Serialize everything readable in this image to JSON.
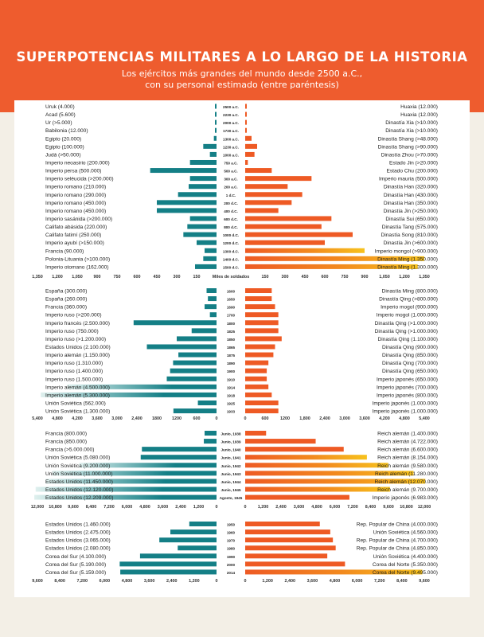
{
  "header": {
    "title": "SUPERPOTENCIAS MILITARES A LO LARGO DE LA HISTORIA",
    "subtitle_line1": "Los ejércitos más grandes del mundo desde 2500 a.C.,",
    "subtitle_line2": "con su personal estimado (entre paréntesis)"
  },
  "colors": {
    "background": "#f3efe6",
    "header": "#ee5c2e",
    "left_bar": "#147f86",
    "right_bar": "#ee5a24",
    "right_highlight": "#f5a81c"
  },
  "chart_data": [
    {
      "type": "bar",
      "layout": "diverging",
      "x_unit_label": "Miles de soldados",
      "ticks_left": [
        "1,350",
        "1,200",
        "1,050",
        "900",
        "750",
        "600",
        "450",
        "300",
        "150"
      ],
      "ticks_right": [
        "150",
        "300",
        "450",
        "600",
        "750",
        "900",
        "1,050",
        "1,200",
        "1,350"
      ],
      "xlim": [
        0,
        1350
      ],
      "rows": [
        {
          "year": "2500 a.C.",
          "left_label": "Uruk (4.000)",
          "left_value": 4,
          "right_label": "Huaxia (12.000)",
          "right_value": 12
        },
        {
          "year": "2230 a.C.",
          "left_label": "Acad (5.600)",
          "left_value": 5.6,
          "right_label": "Huaxia (12.000)",
          "right_value": 12
        },
        {
          "year": "2000 a.C.",
          "left_label": "Ur (>5.000)",
          "left_value": 5,
          "right_label": "Dinastía Xia (>10.000)",
          "right_value": 10
        },
        {
          "year": "1730 a.C.",
          "left_label": "Babilonia (12.000)",
          "left_value": 12,
          "right_label": "Dinastía Xia (>10.000)",
          "right_value": 10
        },
        {
          "year": "1300 a.C.",
          "left_label": "Egipto (20.000)",
          "left_value": 20,
          "right_label": "Dinastía Shang (>48.000)",
          "right_value": 48
        },
        {
          "year": "1230 a.C.",
          "left_label": "Egipto (100.000)",
          "left_value": 100,
          "right_label": "Dinastía Shang (>90.000)",
          "right_value": 90
        },
        {
          "year": "1000 a.C.",
          "left_label": "Judá (>50.000)",
          "left_value": 50,
          "right_label": "Dinastía Zhou (>70.000)",
          "right_value": 70
        },
        {
          "year": "750 a.C.",
          "left_label": "Imperio neoasirio (200.000)",
          "left_value": 200,
          "right_label": "Estado Jin (>20.000)",
          "right_value": 20
        },
        {
          "year": "500 a.C.",
          "left_label": "Imperio persa (500.000)",
          "left_value": 500,
          "right_label": "Estado Chu (200.000)",
          "right_value": 200
        },
        {
          "year": "300 a.C.",
          "left_label": "Imperio seléucida (>200.000)",
          "left_value": 200,
          "right_label": "Imperio mauria (500.000)",
          "right_value": 500
        },
        {
          "year": "200 a.C.",
          "left_label": "Imperio romano (210.000)",
          "left_value": 210,
          "right_label": "Dinastía Han (320.000)",
          "right_value": 320
        },
        {
          "year": "1 d.C.",
          "left_label": "Imperio romano (290.000)",
          "left_value": 290,
          "right_label": "Dinastía Han (430.000)",
          "right_value": 430
        },
        {
          "year": "200 d.C.",
          "left_label": "Imperio romano (450.000)",
          "left_value": 450,
          "right_label": "Dinastía Han (350.000)",
          "right_value": 350
        },
        {
          "year": "400 d.C.",
          "left_label": "Imperio romano (450.000)",
          "left_value": 450,
          "right_label": "Dinastía Jin (>250.000)",
          "right_value": 250
        },
        {
          "year": "600 d.C.",
          "left_label": "Imperio sasánida (>200.000)",
          "left_value": 200,
          "right_label": "Dinastía Sui (650.000)",
          "right_value": 650
        },
        {
          "year": "800 d.C.",
          "left_label": "Califato abásida (220.000)",
          "left_value": 220,
          "right_label": "Dinastía Tang (575.000)",
          "right_value": 575
        },
        {
          "year": "1000 d.C.",
          "left_label": "Califato fatimí (250.000)",
          "left_value": 250,
          "right_label": "Dinastía Song (810.000)",
          "right_value": 810
        },
        {
          "year": "1200 d.C.",
          "left_label": "Imperio ayubí (>150.000)",
          "left_value": 150,
          "right_label": "Dinastía Jin (>600.000)",
          "right_value": 600
        },
        {
          "year": "1300 d.C.",
          "left_label": "Francia (90.000)",
          "left_value": 90,
          "right_label": "Imperio mongol (>900.000)",
          "right_value": 900
        },
        {
          "year": "1400 d.C.",
          "left_label": "Polonia-Lituania (>100.000)",
          "left_value": 100,
          "right_label": "Dinastía Ming (1.350.000)",
          "right_value": 1350
        },
        {
          "year": "1500 d.C.",
          "left_label": "Imperio otomano (162.000)",
          "left_value": 162,
          "right_label": "Dinastía Ming (1.300.000)",
          "right_value": 1300
        }
      ]
    },
    {
      "type": "bar",
      "layout": "diverging",
      "ticks_left": [
        "5,400",
        "4,800",
        "4,200",
        "3,600",
        "3,000",
        "2,400",
        "1800",
        "1200",
        "600",
        "0"
      ],
      "ticks_right": [
        "0",
        "600",
        "1200",
        "1,800",
        "2,400",
        "3,000",
        "3,600",
        "4,200",
        "4,800",
        "5,400"
      ],
      "xlim": [
        0,
        5400
      ],
      "rows": [
        {
          "year": "1600",
          "left_label": "España (300.000)",
          "left_value": 300,
          "right_label": "Dinastía Ming (800.000)",
          "right_value": 800
        },
        {
          "year": "1650",
          "left_label": "España (260.000)",
          "left_value": 260,
          "right_label": "Dinastía Qing (>800.000)",
          "right_value": 800
        },
        {
          "year": "1690",
          "left_label": "Francia (360.000)",
          "left_value": 360,
          "right_label": "Imperio mogol (900.000)",
          "right_value": 900
        },
        {
          "year": "1700",
          "left_label": "Imperio ruso (>200.000)",
          "left_value": 200,
          "right_label": "Imperio mogol (1.000.000)",
          "right_value": 1000
        },
        {
          "year": "1800",
          "left_label": "Imperio francés (2.500.000)",
          "left_value": 2500,
          "right_label": "Dinastía Qing (>1.000.000)",
          "right_value": 1000
        },
        {
          "year": "1825",
          "left_label": "Imperio ruso (750.000)",
          "left_value": 750,
          "right_label": "Dinastía Qing (>1.000.000)",
          "right_value": 1000
        },
        {
          "year": "1850",
          "left_label": "Imperio ruso (>1.200.000)",
          "left_value": 1200,
          "right_label": "Dinastía Qing (1.100.000)",
          "right_value": 1100
        },
        {
          "year": "1865",
          "left_label": "Estados Unidos (2.100.000)",
          "left_value": 2100,
          "right_label": "Dinastía Qing (900.000)",
          "right_value": 900
        },
        {
          "year": "1875",
          "left_label": "Imperio alemán (1.150.000)",
          "left_value": 1150,
          "right_label": "Dinastía Qing (850.000)",
          "right_value": 850
        },
        {
          "year": "1890",
          "left_label": "Imperio ruso (1.310.000)",
          "left_value": 1310,
          "right_label": "Dinastía Qing (700.000)",
          "right_value": 700
        },
        {
          "year": "1900",
          "left_label": "Imperio ruso (1.400.000)",
          "left_value": 1400,
          "right_label": "Dinastía Qing (650.000)",
          "right_value": 650
        },
        {
          "year": "1910",
          "left_label": "Imperio ruso (1.500.000)",
          "left_value": 1500,
          "right_label": "Imperio japonés (650.000)",
          "right_value": 650
        },
        {
          "year": "1914",
          "left_label": "Imperio alemán (4.500.000)",
          "left_value": 4500,
          "right_label": "Imperio japonés (700.000)",
          "right_value": 700
        },
        {
          "year": "1918",
          "left_label": "Imperio alemán (5.300.000)",
          "left_value": 5300,
          "right_label": "Imperio japonés (800.000)",
          "right_value": 800
        },
        {
          "year": "1925",
          "left_label": "Unión Soviética (562.000)",
          "left_value": 562,
          "right_label": "Imperio japonés (1.000.000)",
          "right_value": 1000
        },
        {
          "year": "1933",
          "left_label": "Unión Soviética (1.300.000)",
          "left_value": 1300,
          "right_label": "Imperio japonés (1.000.000)",
          "right_value": 1000
        }
      ]
    },
    {
      "type": "bar",
      "layout": "diverging",
      "ticks_left": [
        "12,000",
        "10,800",
        "9,600",
        "8,400",
        "7,200",
        "6,000",
        "4,800",
        "3,600",
        "2,400",
        "1,200",
        "0"
      ],
      "ticks_right": [
        "0",
        "1,200",
        "2,400",
        "3,600",
        "4,800",
        "6,000",
        "7,200",
        "8,400",
        "9,600",
        "10,800",
        "12,000"
      ],
      "xlim": [
        0,
        12000
      ],
      "rows": [
        {
          "year": "Junio, 1938",
          "left_label": "Francia (800.000)",
          "left_value": 800,
          "right_label": "Reich alemán (1.400.000)",
          "right_value": 1400
        },
        {
          "year": "Junio, 1939",
          "left_label": "Francia (850.000)",
          "left_value": 850,
          "right_label": "Reich alemán (4.722.000)",
          "right_value": 4722
        },
        {
          "year": "Junio, 1940",
          "left_label": "Francia (>5.000.000)",
          "left_value": 5000,
          "right_label": "Reich alemán (6.600.000)",
          "right_value": 6600
        },
        {
          "year": "Junio, 1941",
          "left_label": "Unión Soviética (5.080.000)",
          "left_value": 5080,
          "right_label": "Reich alemán (8.154.000)",
          "right_value": 8154
        },
        {
          "year": "Junio, 1942",
          "left_label": "Unión Soviética (9.200.000)",
          "left_value": 9200,
          "right_label": "Reich alemán (9.580.000)",
          "right_value": 9580
        },
        {
          "year": "Junio, 1943",
          "left_label": "Unión Soviética (11.000.000)",
          "left_value": 11000,
          "right_label": "Reich alemán (11.280.000)",
          "right_value": 11280
        },
        {
          "year": "Junio, 1944",
          "left_label": "Estados Unidos (11.450.000)",
          "left_value": 11450,
          "right_label": "Reich alemán (12.070.000)",
          "right_value": 12070
        },
        {
          "year": "Junio, 1945",
          "left_label": "Estados Unidos (12.120.000)",
          "left_value": 12120,
          "right_label": "Reich alemán (9.700.000)",
          "right_value": 9700
        },
        {
          "year": "Agosto, 1945",
          "left_label": "Estados Unidos (12.209.000)",
          "left_value": 12209,
          "right_label": "Imperio japonés (6.983.000)",
          "right_value": 6983
        }
      ]
    },
    {
      "type": "bar",
      "layout": "diverging",
      "ticks_left": [
        "9,600",
        "8,400",
        "7,200",
        "6,000",
        "4,800",
        "3,600",
        "2,400",
        "1,200",
        "0"
      ],
      "ticks_right": [
        "0",
        "1,200",
        "2,400",
        "3,600",
        "4,800",
        "6,000",
        "7,200",
        "8,400",
        "9,600"
      ],
      "xlim": [
        0,
        9600
      ],
      "rows": [
        {
          "year": "1950",
          "left_label": "Estados Unidos (1.460.000)",
          "left_value": 1460,
          "right_label": "Rep. Popular de China (4.000.000)",
          "right_value": 4000
        },
        {
          "year": "1960",
          "left_label": "Estados Unidos (2.475.000)",
          "left_value": 2475,
          "right_label": "Unión Soviética (4.560.000)",
          "right_value": 4560
        },
        {
          "year": "1970",
          "left_label": "Estados Unidos (3.065.000)",
          "left_value": 3065,
          "right_label": "Rep. Popular de China (4.700.000)",
          "right_value": 4700
        },
        {
          "year": "1980",
          "left_label": "Estados Unidos (2.080.000)",
          "left_value": 2080,
          "right_label": "Rep. Popular de China (4.850.000)",
          "right_value": 4850
        },
        {
          "year": "1990",
          "left_label": "Corea del Sur (4.100.000)",
          "left_value": 4100,
          "right_label": "Unión Soviética (4.400.000)",
          "right_value": 4400
        },
        {
          "year": "2000",
          "left_label": "Corea del Sur (5.190.000)",
          "left_value": 5190,
          "right_label": "Corea del Norte (5.350.000)",
          "right_value": 5350
        },
        {
          "year": "2014",
          "left_label": "Corea del Sur (5.159.000)",
          "left_value": 5159,
          "right_label": "Corea del Norte (9.495.000)",
          "right_value": 9495
        }
      ]
    }
  ]
}
